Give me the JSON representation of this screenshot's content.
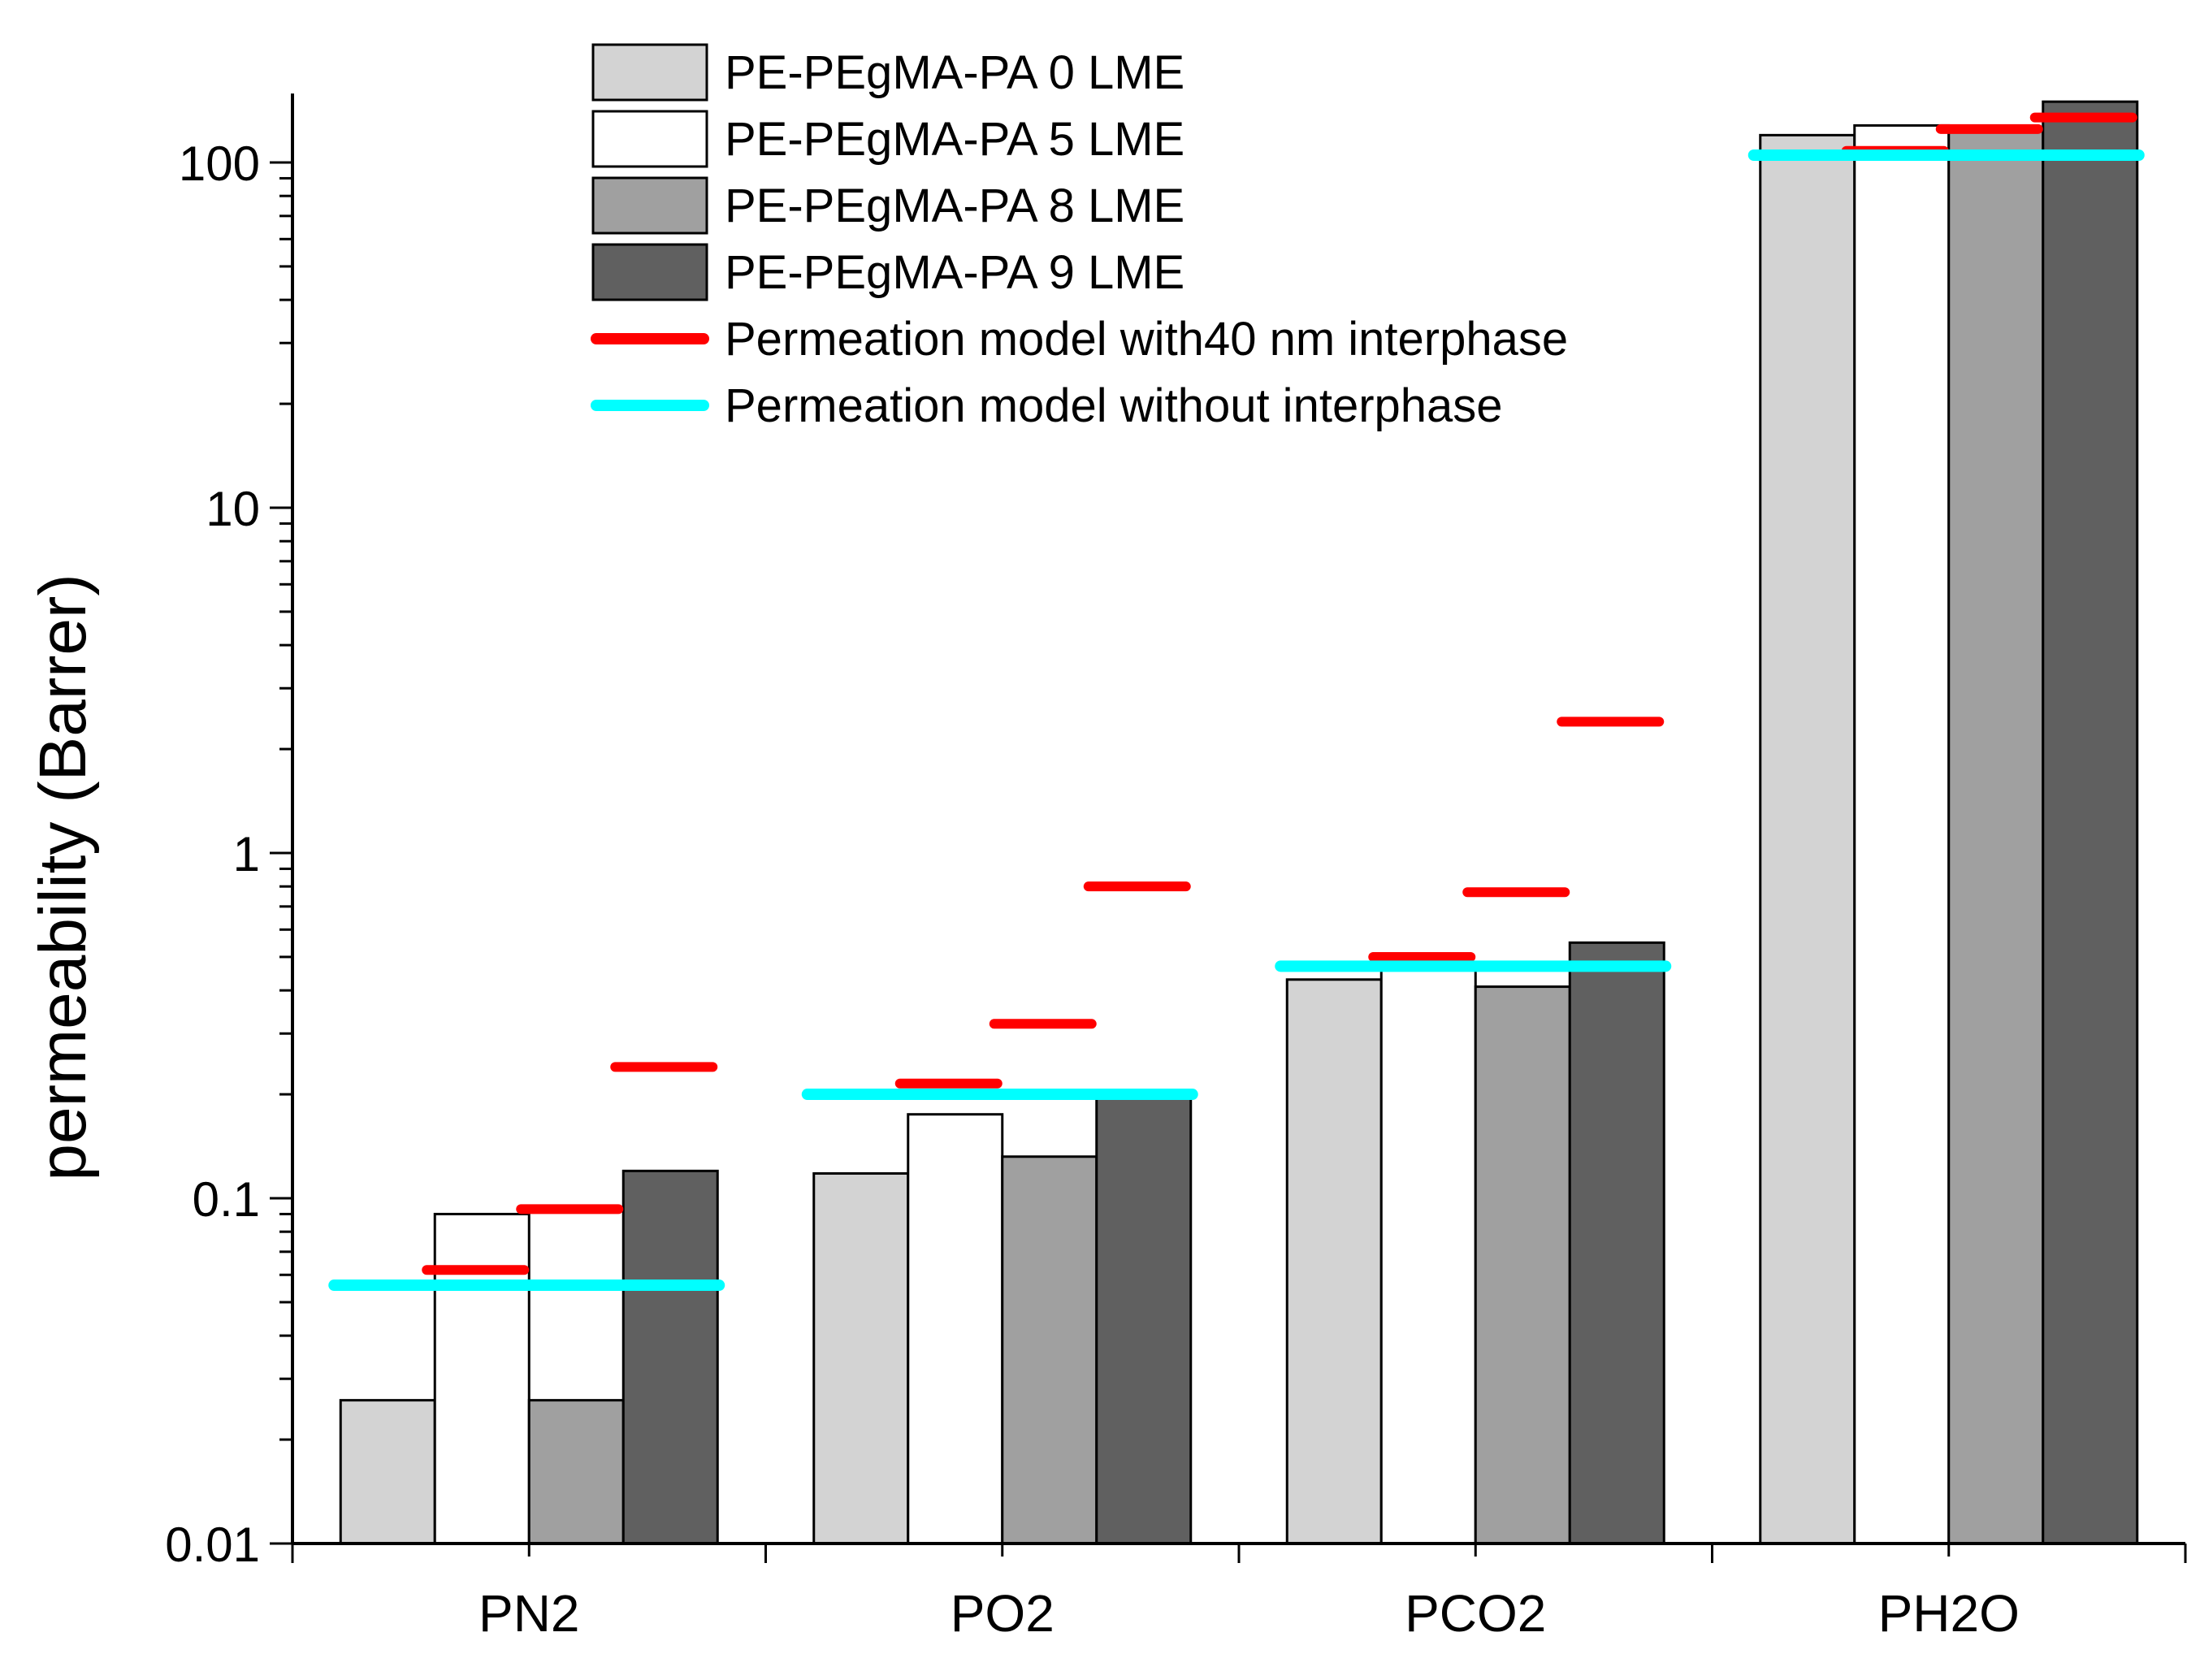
{
  "chart_data": {
    "type": "bar",
    "title": "",
    "xlabel": "",
    "ylabel": "permeability (Barrer)",
    "yscale": "log",
    "ylim": [
      0.01,
      150
    ],
    "yticks": [
      {
        "value": 0.01,
        "label": "0.01"
      },
      {
        "value": 0.1,
        "label": "0.1"
      },
      {
        "value": 1,
        "label": "1"
      },
      {
        "value": 10,
        "label": "10"
      },
      {
        "value": 100,
        "label": "100"
      }
    ],
    "grid": false,
    "legend_position": "top-center",
    "categories": [
      "PN2",
      "PO2",
      "PCO2",
      "PH2O"
    ],
    "series": [
      {
        "name": "PE-PEgMA-PA 0 LME",
        "color": "#d3d3d3",
        "values": [
          0.026,
          0.118,
          0.43,
          120
        ]
      },
      {
        "name": "PE-PEgMA-PA 5 LME",
        "color": "#ffffff",
        "values": [
          0.09,
          0.175,
          0.48,
          128
        ]
      },
      {
        "name": "PE-PEgMA-PA 8 LME",
        "color": "#a0a0a0",
        "values": [
          0.026,
          0.132,
          0.41,
          125
        ]
      },
      {
        "name": "PE-PEgMA-PA 9 LME",
        "color": "#606060",
        "values": [
          0.12,
          0.2,
          0.55,
          150
        ]
      }
    ],
    "model_series": [
      {
        "name": "Permeation model with40 nm interphase",
        "color": "#ff0000",
        "values": [
          [
            null,
            0.062,
            0.093,
            0.24
          ],
          [
            null,
            0.215,
            0.32,
            0.8
          ],
          [
            null,
            0.5,
            0.77,
            2.4
          ],
          [
            null,
            108,
            125,
            135
          ]
        ]
      },
      {
        "name": "Permeation model without interphase",
        "color": "#00ffff",
        "values": [
          0.056,
          0.2,
          0.47,
          105
        ]
      }
    ]
  }
}
